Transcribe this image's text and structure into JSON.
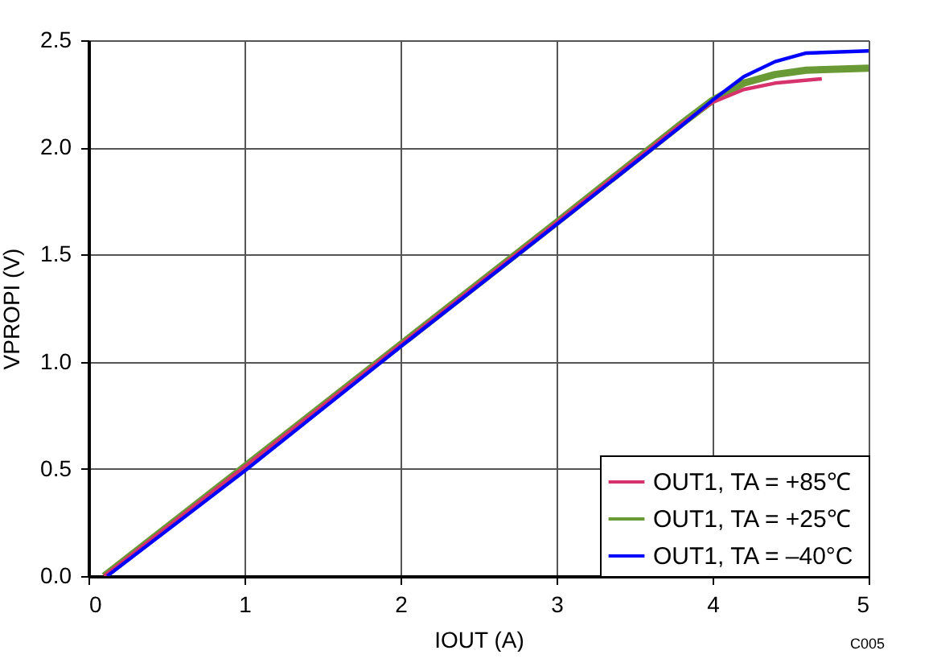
{
  "chart_data": {
    "type": "line",
    "xlabel": "IOUT (A)",
    "ylabel": "VPROPI (V)",
    "xlim": [
      0,
      5
    ],
    "xticks": [
      0,
      1,
      2,
      3,
      4,
      5
    ],
    "ylim": [
      0,
      2.5
    ],
    "yticks": [
      {
        "value": 0,
        "label": "0.0"
      },
      {
        "value": 0.5,
        "label": "0.5"
      },
      {
        "value": 1,
        "label": "1.0"
      },
      {
        "value": 1.5,
        "label": "1.5"
      },
      {
        "value": 2,
        "label": "2.0"
      },
      {
        "value": 2.5,
        "label": "2.5"
      }
    ],
    "grid": true,
    "legend": "bottom right",
    "line_style": "solid",
    "marker": "none",
    "annotations": [
      "C005"
    ],
    "series": [
      {
        "name": "OUT1, TA = +85℃",
        "color": "#d6336c",
        "x": [
          0.1,
          1,
          2,
          3,
          3.8,
          4,
          4.2,
          4.4,
          4.7
        ],
        "values": [
          0,
          0.51,
          1.08,
          1.65,
          2.11,
          2.21,
          2.27,
          2.3,
          2.32
        ]
      },
      {
        "name": "OUT1, TA = +25℃",
        "color": "#6a9a35",
        "x": [
          0.1,
          1,
          2,
          3,
          3.8,
          4,
          4.2,
          4.4,
          4.6,
          5
        ],
        "values": [
          0,
          0.51,
          1.08,
          1.65,
          2.11,
          2.22,
          2.3,
          2.34,
          2.36,
          2.37
        ]
      },
      {
        "name": "OUT1, TA =  –40°C",
        "color": "#0000ff",
        "x": [
          0.12,
          1,
          2,
          3,
          3.8,
          4,
          4.2,
          4.4,
          4.6,
          5
        ],
        "values": [
          0,
          0.49,
          1.07,
          1.64,
          2.1,
          2.22,
          2.33,
          2.4,
          2.44,
          2.45
        ]
      }
    ]
  }
}
